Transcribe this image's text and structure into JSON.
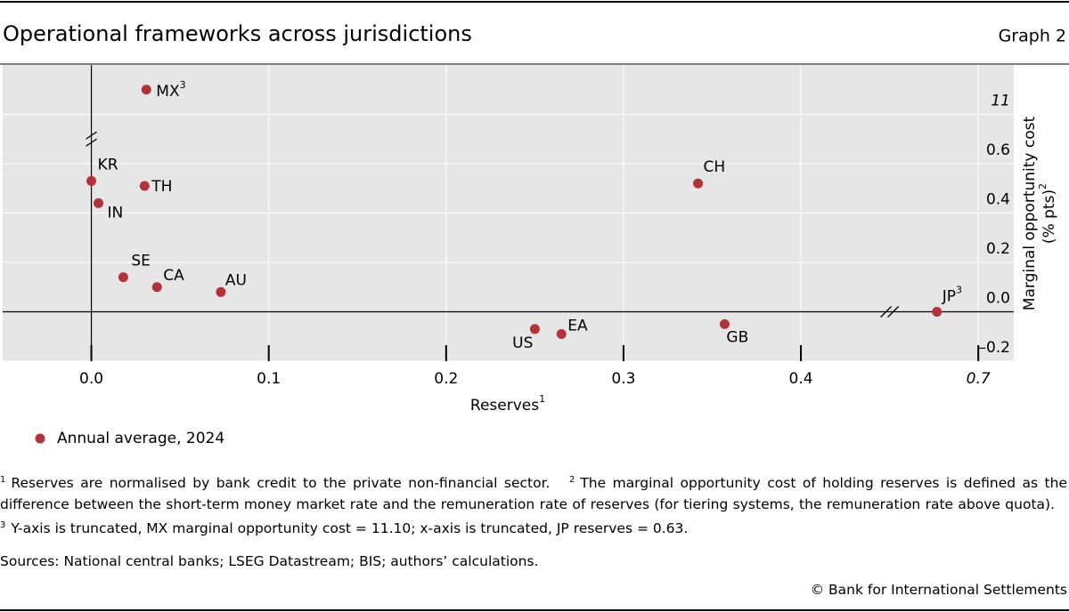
{
  "header": {
    "title": "Operational frameworks across jurisdictions",
    "graph_label": "Graph 2"
  },
  "chart_data": {
    "type": "scatter",
    "xlabel": "Reserves",
    "xlabel_note": "1",
    "ylabel": [
      "Marginal opportunity cost",
      "(% pts)"
    ],
    "ylabel_note": "2",
    "xlim": [
      -0.05,
      0.72
    ],
    "ylim": [
      -0.2,
      11.2
    ],
    "xticks": [
      {
        "value": 0,
        "label": "0.0"
      },
      0.1,
      0.2,
      0.3,
      0.4,
      0.7
    ],
    "yticks": [
      {
        "value": -0.2,
        "label": "–0.2"
      },
      {
        "value": 0,
        "label": "0.0"
      },
      0.2,
      0.4,
      0.6,
      11
    ],
    "x_truncated": true,
    "y_truncated": true,
    "grid": true,
    "legend": "bottom-left",
    "series": [
      {
        "name": "Annual average, 2024",
        "color": "#b2333a",
        "point_labels": [
          "KR",
          "IN",
          "TH",
          "MX",
          "SE",
          "CA",
          "AU",
          "US",
          "EA",
          "CH",
          "GB",
          "JP"
        ],
        "point_label_notes": [
          null,
          null,
          null,
          "3",
          null,
          null,
          null,
          null,
          null,
          null,
          null,
          "3"
        ],
        "x": [
          0.0,
          0.004,
          0.03,
          0.031,
          0.018,
          0.037,
          0.073,
          0.25,
          0.265,
          0.342,
          0.357,
          0.63
        ],
        "values": [
          0.53,
          0.44,
          0.51,
          11.1,
          0.14,
          0.1,
          0.08,
          -0.07,
          -0.09,
          0.52,
          -0.05,
          0.0
        ]
      }
    ]
  },
  "footnotes": [
    {
      "mark": "1",
      "text": "Reserves are normalised by bank credit to the private non-financial sector."
    },
    {
      "mark": "2",
      "text": "The marginal opportunity cost of holding reserves is defined as the difference between the short-term money market rate and the remuneration rate of reserves (for tiering systems, the remuneration rate above quota)."
    },
    {
      "mark": "3",
      "text": "Y-axis is truncated, MX marginal opportunity cost = 11.10; x-axis is truncated, JP reserves = 0.63."
    }
  ],
  "sources": "Sources: National central banks; LSEG Datastream; BIS; authors’ calculations.",
  "copyright": "© Bank for International Settlements"
}
